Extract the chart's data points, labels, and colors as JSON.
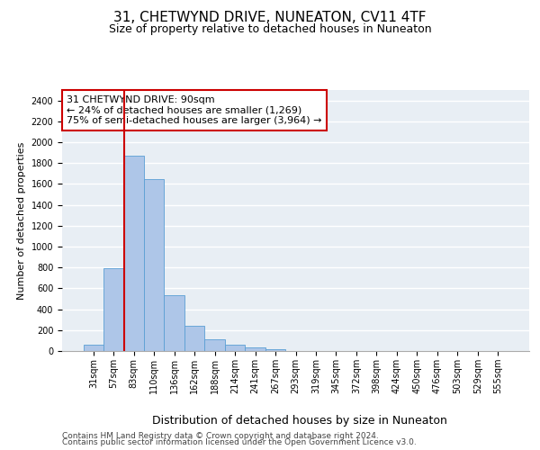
{
  "title": "31, CHETWYND DRIVE, NUNEATON, CV11 4TF",
  "subtitle": "Size of property relative to detached houses in Nuneaton",
  "xlabel": "Distribution of detached houses by size in Nuneaton",
  "ylabel": "Number of detached properties",
  "bin_labels": [
    "31sqm",
    "57sqm",
    "83sqm",
    "110sqm",
    "136sqm",
    "162sqm",
    "188sqm",
    "214sqm",
    "241sqm",
    "267sqm",
    "293sqm",
    "319sqm",
    "345sqm",
    "372sqm",
    "398sqm",
    "424sqm",
    "450sqm",
    "476sqm",
    "503sqm",
    "529sqm",
    "555sqm"
  ],
  "bar_values": [
    60,
    790,
    1870,
    1650,
    535,
    240,
    110,
    60,
    35,
    20,
    0,
    0,
    0,
    0,
    0,
    0,
    0,
    0,
    0,
    0,
    0
  ],
  "bar_color": "#aec6e8",
  "bar_edge_color": "#5a9fd4",
  "background_color": "#e8eef4",
  "grid_color": "#ffffff",
  "property_line_bin": 2,
  "property_label": "31 CHETWYND DRIVE: 90sqm",
  "annotation_line1": "← 24% of detached houses are smaller (1,269)",
  "annotation_line2": "75% of semi-detached houses are larger (3,964) →",
  "annotation_box_color": "#ffffff",
  "annotation_box_edge": "#cc0000",
  "vline_color": "#cc0000",
  "ylim": [
    0,
    2500
  ],
  "yticks": [
    0,
    200,
    400,
    600,
    800,
    1000,
    1200,
    1400,
    1600,
    1800,
    2000,
    2200,
    2400
  ],
  "footer_line1": "Contains HM Land Registry data © Crown copyright and database right 2024.",
  "footer_line2": "Contains public sector information licensed under the Open Government Licence v3.0.",
  "title_fontsize": 11,
  "subtitle_fontsize": 9,
  "xlabel_fontsize": 9,
  "ylabel_fontsize": 8,
  "tick_fontsize": 7,
  "annotation_fontsize": 8,
  "footer_fontsize": 6.5
}
